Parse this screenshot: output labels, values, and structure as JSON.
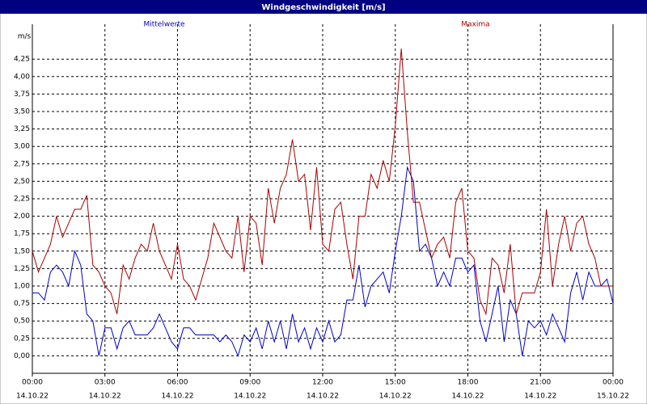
{
  "chart_data": {
    "type": "line",
    "title": "Windgeschwindigkeit [m/s]",
    "y_label": "m/s",
    "xlim": [
      0,
      24
    ],
    "ylim": [
      -0.25,
      4.75
    ],
    "xticks": [
      {
        "value": 0,
        "label": "00:00"
      },
      {
        "value": 3,
        "label": "03:00"
      },
      {
        "value": 6,
        "label": "06:00"
      },
      {
        "value": 9,
        "label": "09:00"
      },
      {
        "value": 12,
        "label": "12:00"
      },
      {
        "value": 15,
        "label": "15:00"
      },
      {
        "value": 18,
        "label": "18:00"
      },
      {
        "value": 21,
        "label": "21:00"
      },
      {
        "value": 24,
        "label": "00:00"
      }
    ],
    "xtick_dates": [
      "14.10.22",
      "14.10.22",
      "14.10.22",
      "14.10.22",
      "14.10.22",
      "14.10.22",
      "14.10.22",
      "14.10.22",
      "15.10.22"
    ],
    "yticks": [
      {
        "value": 0,
        "label": "0,00"
      },
      {
        "value": 0.25,
        "label": "0,25"
      },
      {
        "value": 0.5,
        "label": "0,50"
      },
      {
        "value": 0.75,
        "label": "0,75"
      },
      {
        "value": 1,
        "label": "1,00"
      },
      {
        "value": 1.25,
        "label": "1,25"
      },
      {
        "value": 1.5,
        "label": "1,50"
      },
      {
        "value": 1.75,
        "label": "1,75"
      },
      {
        "value": 2,
        "label": "2,00"
      },
      {
        "value": 2.25,
        "label": "2,25"
      },
      {
        "value": 2.5,
        "label": "2,50"
      },
      {
        "value": 2.75,
        "label": "2,75"
      },
      {
        "value": 3,
        "label": "3,00"
      },
      {
        "value": 3.25,
        "label": "3,25"
      },
      {
        "value": 3.5,
        "label": "3,50"
      },
      {
        "value": 3.75,
        "label": "3,75"
      },
      {
        "value": 4,
        "label": "4,00"
      },
      {
        "value": 4.25,
        "label": "4,25"
      }
    ],
    "grid": true,
    "x": [
      0,
      0.25,
      0.5,
      0.75,
      1,
      1.25,
      1.5,
      1.75,
      2,
      2.25,
      2.5,
      2.75,
      3,
      3.25,
      3.5,
      3.75,
      4,
      4.25,
      4.5,
      4.75,
      5,
      5.25,
      5.5,
      5.75,
      6,
      6.25,
      6.5,
      6.75,
      7,
      7.25,
      7.5,
      7.75,
      8,
      8.25,
      8.5,
      8.75,
      9,
      9.25,
      9.5,
      9.75,
      10,
      10.25,
      10.5,
      10.75,
      11,
      11.25,
      11.5,
      11.75,
      12,
      12.25,
      12.5,
      12.75,
      13,
      13.25,
      13.5,
      13.75,
      14,
      14.25,
      14.5,
      14.75,
      15,
      15.25,
      15.5,
      15.75,
      16,
      16.25,
      16.5,
      16.75,
      17,
      17.25,
      17.5,
      17.75,
      18,
      18.25,
      18.5,
      18.75,
      19,
      19.25,
      19.5,
      19.75,
      20,
      20.25,
      20.5,
      20.75,
      21,
      21.25,
      21.5,
      21.75,
      22,
      22.25,
      22.5,
      22.75,
      23,
      23.25,
      23.5,
      23.75,
      24
    ],
    "series": [
      {
        "name": "Mittelwerte",
        "color": "#0000cc",
        "values": [
          0.9,
          0.9,
          0.8,
          1.2,
          1.3,
          1.2,
          1.0,
          1.5,
          1.3,
          0.6,
          0.5,
          0.0,
          0.4,
          0.4,
          0.1,
          0.4,
          0.5,
          0.3,
          0.3,
          0.3,
          0.4,
          0.6,
          0.4,
          0.2,
          0.1,
          0.4,
          0.4,
          0.3,
          0.3,
          0.3,
          0.3,
          0.2,
          0.3,
          0.2,
          0.0,
          0.3,
          0.2,
          0.4,
          0.1,
          0.5,
          0.2,
          0.5,
          0.1,
          0.6,
          0.2,
          0.4,
          0.1,
          0.4,
          0.2,
          0.5,
          0.2,
          0.3,
          0.8,
          0.8,
          1.3,
          0.7,
          1.0,
          1.1,
          1.2,
          0.9,
          1.5,
          2.0,
          2.7,
          2.5,
          1.5,
          1.6,
          1.4,
          1.0,
          1.2,
          1.0,
          1.4,
          1.4,
          1.2,
          1.3,
          0.5,
          0.2,
          0.6,
          1.0,
          0.2,
          0.8,
          0.6,
          0.0,
          0.5,
          0.4,
          0.5,
          0.3,
          0.6,
          0.4,
          0.2,
          0.9,
          1.2,
          0.8,
          1.2,
          1.0,
          1.0,
          1.1,
          0.75
        ]
      },
      {
        "name": "Maxima",
        "color": "#aa0000",
        "values": [
          1.5,
          1.2,
          1.4,
          1.6,
          2.0,
          1.7,
          1.9,
          2.1,
          2.1,
          2.3,
          1.3,
          1.2,
          1.0,
          0.9,
          0.6,
          1.3,
          1.1,
          1.4,
          1.6,
          1.5,
          1.9,
          1.5,
          1.3,
          1.1,
          1.6,
          1.1,
          1.0,
          0.8,
          1.1,
          1.4,
          1.9,
          1.7,
          1.5,
          1.4,
          2.0,
          1.2,
          2.0,
          1.9,
          1.3,
          2.4,
          1.9,
          2.4,
          2.6,
          3.1,
          2.5,
          2.6,
          1.8,
          2.7,
          1.6,
          1.5,
          2.1,
          2.2,
          1.6,
          1.1,
          2.0,
          2.0,
          2.6,
          2.4,
          2.8,
          2.5,
          3.3,
          4.4,
          3.2,
          2.2,
          2.2,
          1.8,
          1.4,
          1.6,
          1.7,
          1.4,
          2.2,
          2.4,
          1.5,
          1.4,
          0.8,
          0.6,
          1.4,
          1.3,
          0.9,
          1.6,
          0.6,
          0.9,
          0.9,
          0.9,
          1.2,
          2.1,
          1.0,
          1.6,
          2.0,
          1.5,
          1.9,
          2.0,
          1.6,
          1.4,
          1.0,
          1.0,
          1.0
        ]
      }
    ]
  }
}
